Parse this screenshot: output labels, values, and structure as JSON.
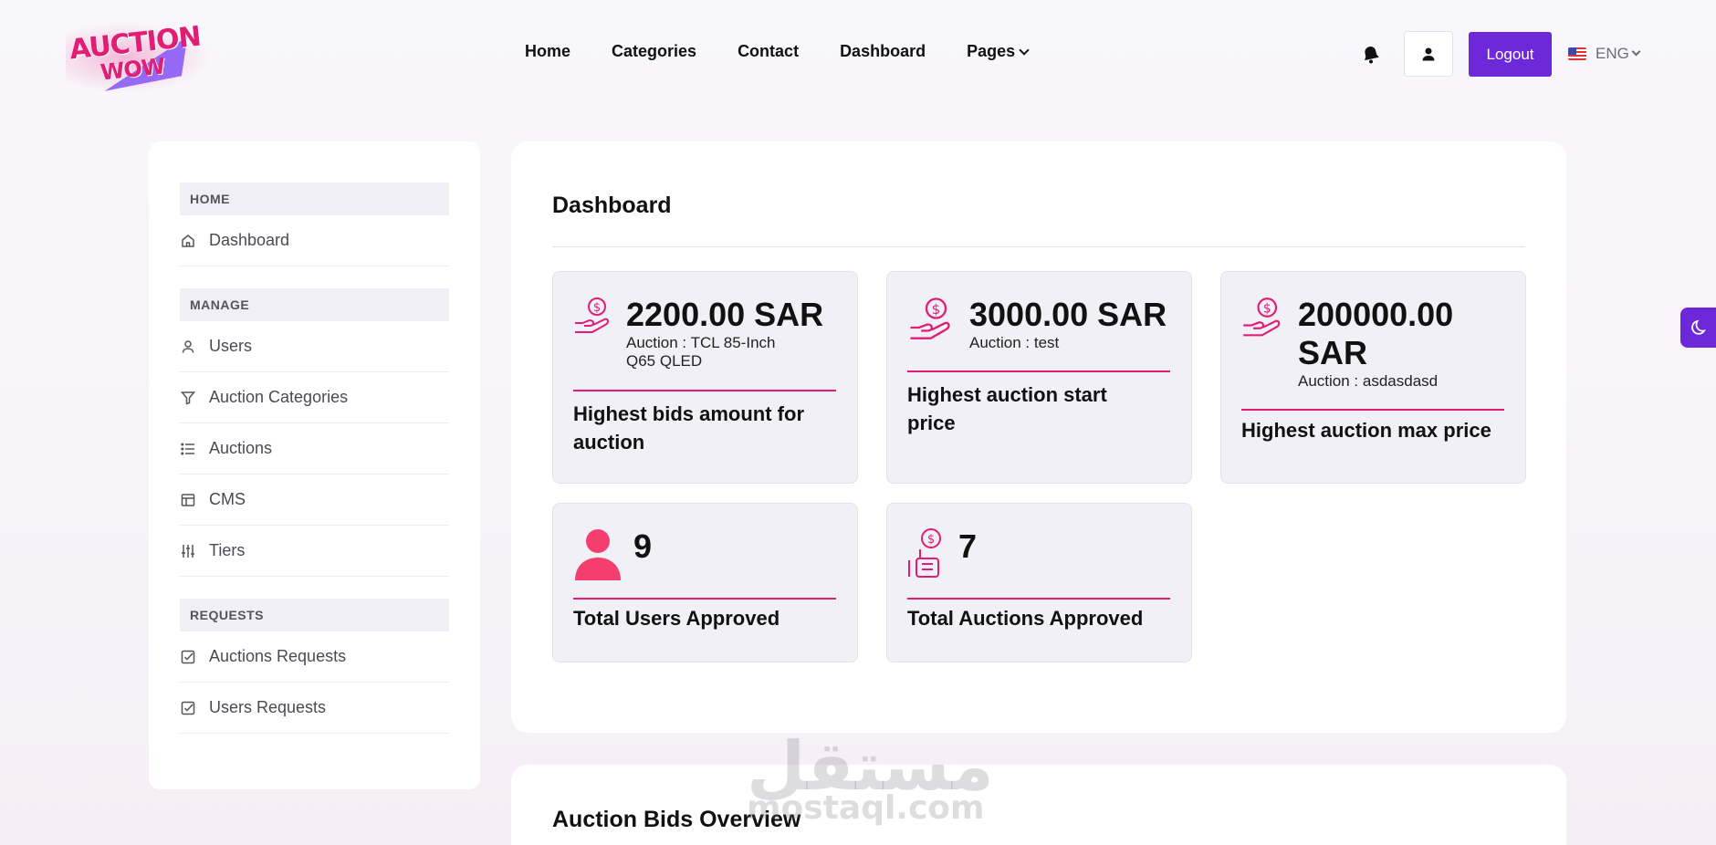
{
  "brand": {
    "logo_line1": "AUCTION",
    "logo_line2": "WOW"
  },
  "nav": {
    "items": [
      "Home",
      "Categories",
      "Contact",
      "Dashboard"
    ],
    "pages_label": "Pages"
  },
  "header": {
    "logout_label": "Logout",
    "language": "ENG"
  },
  "sidebar": {
    "home_heading": "HOME",
    "home_items": [
      "Dashboard"
    ],
    "manage_heading": "MANAGE",
    "manage_items": [
      "Users",
      "Auction Categories",
      "Auctions",
      "CMS",
      "Tiers"
    ],
    "requests_heading": "REQUESTS",
    "requests_items": [
      "Auctions Requests",
      "Users Requests"
    ]
  },
  "main": {
    "title": "Dashboard",
    "cards": [
      {
        "value": "2200.00 SAR",
        "sub": "Auction : TCL 85-Inch Q65 QLED",
        "label": "Highest bids amount for auction",
        "icon": "hand-coin-icon"
      },
      {
        "value": "3000.00 SAR",
        "sub": "Auction : test",
        "label": "Highest auction start price",
        "icon": "hand-coin-icon"
      },
      {
        "value": "200000.00 SAR",
        "sub": "Auction : asdasdasd",
        "label": "Highest auction max price",
        "icon": "hand-coin-icon"
      },
      {
        "value": "9",
        "label": "Total Users Approved",
        "icon": "user-icon"
      },
      {
        "value": "7",
        "label": "Total Auctions Approved",
        "icon": "hand-money-icon"
      }
    ],
    "section2_title": "Auction Bids Overview"
  },
  "watermark": {
    "arabic": "مستقل",
    "latin": "mostaql.com"
  },
  "colors": {
    "accent": "#6d28d9",
    "pink": "#e11d74",
    "card_bg": "#f1f0f6"
  }
}
